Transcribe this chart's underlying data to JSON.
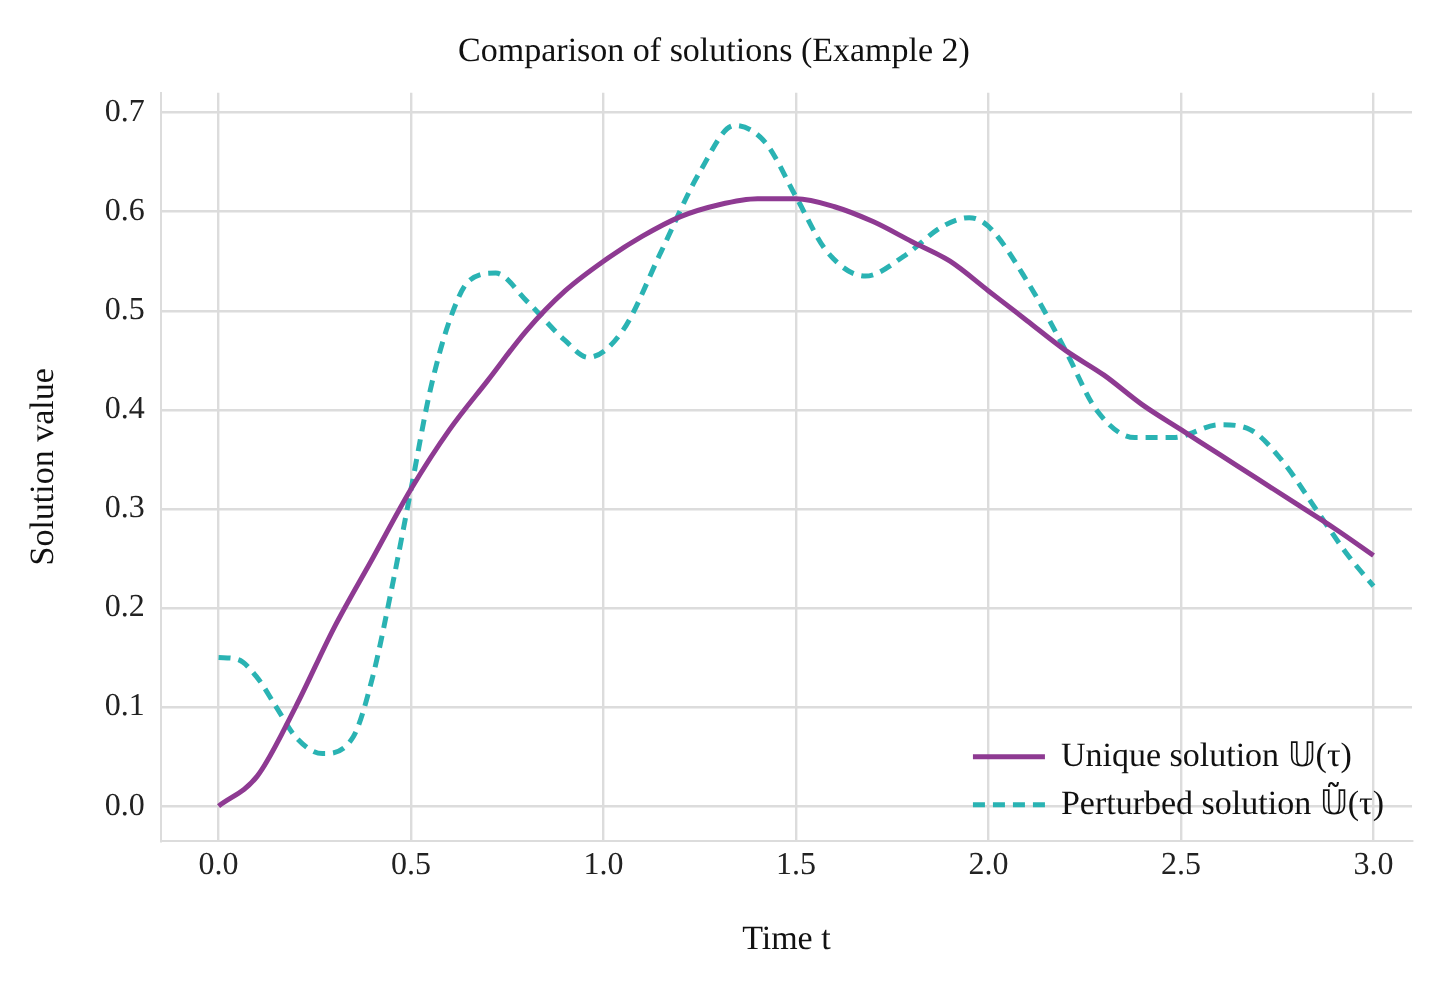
{
  "chart_data": {
    "type": "line",
    "title": "Comparison of solutions (Example 2)",
    "xlabel": "Time t",
    "ylabel": "Solution value",
    "xlim": [
      -0.15,
      3.1
    ],
    "ylim": [
      -0.035,
      0.72
    ],
    "xticks": [
      {
        "value": 0,
        "label": "0.0"
      },
      {
        "value": 0.5,
        "label": "0.5"
      },
      {
        "value": 1,
        "label": "1.0"
      },
      {
        "value": 1.5,
        "label": "1.5"
      },
      {
        "value": 2,
        "label": "2.0"
      },
      {
        "value": 2.5,
        "label": "2.5"
      },
      {
        "value": 3,
        "label": "3.0"
      }
    ],
    "yticks": [
      {
        "value": 0,
        "label": "0.0"
      },
      {
        "value": 0.1,
        "label": "0.1"
      },
      {
        "value": 0.2,
        "label": "0.2"
      },
      {
        "value": 0.3,
        "label": "0.3"
      },
      {
        "value": 0.4,
        "label": "0.4"
      },
      {
        "value": 0.5,
        "label": "0.5"
      },
      {
        "value": 0.6,
        "label": "0.6"
      },
      {
        "value": 0.7,
        "label": "0.7"
      }
    ],
    "grid": true,
    "legend": "bottom right",
    "marker": "none",
    "series": [
      {
        "name": "Unique solution 𝕌(τ)",
        "color": "#8e3a92",
        "line_style": "solid",
        "x": [
          0,
          0.1,
          0.2,
          0.3,
          0.4,
          0.5,
          0.6,
          0.7,
          0.8,
          0.9,
          1.0,
          1.1,
          1.2,
          1.3,
          1.4,
          1.5,
          1.6,
          1.7,
          1.8,
          1.9,
          2.0,
          2.1,
          2.2,
          2.3,
          2.4,
          2.5,
          2.6,
          2.7,
          2.8,
          2.9,
          3.0
        ],
        "values": [
          0,
          0.03,
          0.1,
          0.18,
          0.25,
          0.32,
          0.38,
          0.43,
          0.48,
          0.52,
          0.55,
          0.575,
          0.595,
          0.607,
          0.613,
          0.613,
          0.605,
          0.59,
          0.57,
          0.55,
          0.52,
          0.49,
          0.46,
          0.435,
          0.405,
          0.38,
          0.355,
          0.33,
          0.305,
          0.28,
          0.253
        ]
      },
      {
        "name": "Perturbed solution 𝕌̃(τ)",
        "color": "#2ab3b3",
        "line_style": "dashed",
        "x": [
          0,
          0.05,
          0.1,
          0.15,
          0.2,
          0.27,
          0.35,
          0.4,
          0.45,
          0.5,
          0.55,
          0.6,
          0.65,
          0.72,
          0.8,
          0.9,
          0.96,
          1.05,
          1.15,
          1.25,
          1.34,
          1.42,
          1.5,
          1.58,
          1.68,
          1.78,
          1.88,
          1.95,
          2.0,
          2.1,
          2.2,
          2.28,
          2.38,
          2.48,
          2.6,
          2.68,
          2.76,
          2.85,
          2.93,
          3.0
        ],
        "values": [
          0.15,
          0.148,
          0.13,
          0.1,
          0.07,
          0.053,
          0.07,
          0.13,
          0.22,
          0.32,
          0.42,
          0.49,
          0.53,
          0.538,
          0.51,
          0.47,
          0.453,
          0.48,
          0.56,
          0.64,
          0.687,
          0.67,
          0.615,
          0.56,
          0.535,
          0.555,
          0.585,
          0.594,
          0.585,
          0.53,
          0.46,
          0.4,
          0.372,
          0.372,
          0.385,
          0.38,
          0.35,
          0.3,
          0.255,
          0.222
        ]
      }
    ]
  }
}
